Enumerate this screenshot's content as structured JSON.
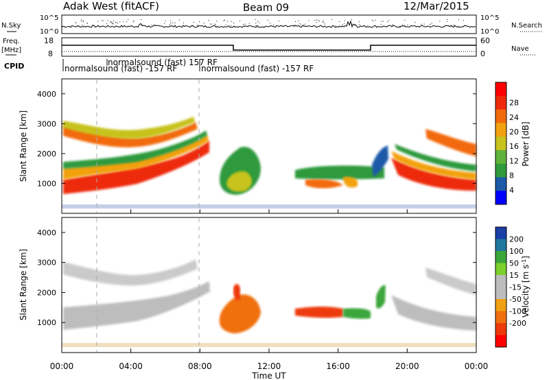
{
  "header": {
    "station": "Adak West (fitACF)",
    "beam": "Beam 09",
    "date": "12/Mar/2015"
  },
  "noise_panel": {
    "left_label": "N.Sky",
    "right_label": "N.Search",
    "ticks": [
      "10^5",
      "10^0"
    ],
    "right_ticks": [
      "10^5",
      "10^0"
    ]
  },
  "freq_panel": {
    "left_label_1": "Freq.",
    "left_label_2": "[MHz]",
    "left_ticks": [
      "18",
      "8"
    ],
    "right_label": "Nave",
    "right_ticks": [
      "60",
      "0"
    ]
  },
  "cpid": {
    "label": "CPID",
    "entries": [
      "normalsound (fast) 157 RF",
      "normalsound (fast) -157 RF",
      "normalsound (fast) -157 RF"
    ]
  },
  "colors": {
    "power_scale": [
      "#0000ff",
      "#1c5aa8",
      "#2e9a3c",
      "#5fb23a",
      "#c7c21d",
      "#f2a10f",
      "#f26a0c",
      "#ee2a0a",
      "#ff0000"
    ],
    "velocity_scale": [
      "#1b3fa6",
      "#20789e",
      "#3aa63a",
      "#7ccf2c",
      "#bdbdbd",
      "#bdbdbd",
      "#f0a010",
      "#f07010",
      "#ee3a0a",
      "#ff0000"
    ]
  },
  "chart_data": [
    {
      "type": "heatmap",
      "name": "power-panel",
      "x": [
        "00:00",
        "04:00",
        "08:00",
        "12:00",
        "16:00",
        "20:00",
        "00:00"
      ],
      "xlabel": "Time UT",
      "ylabel": "Slant Range [km]",
      "y_ticks": [
        1000,
        2000,
        3000,
        4000
      ],
      "ylim": [
        0,
        4500
      ],
      "colorbar_label": "Power [dB]",
      "colorbar_ticks": [
        4,
        8,
        12,
        16,
        20,
        24,
        28
      ]
    },
    {
      "type": "heatmap",
      "name": "velocity-panel",
      "x": [
        "00:00",
        "04:00",
        "08:00",
        "12:00",
        "16:00",
        "20:00",
        "00:00"
      ],
      "xlabel": "Time UT",
      "ylabel": "Slant Range [km]",
      "y_ticks": [
        1000,
        2000,
        3000,
        4000
      ],
      "ylim": [
        0,
        4500
      ],
      "colorbar_label": "Velocity [m s^-1]",
      "colorbar_ticks": [
        200,
        100,
        50,
        15,
        -15,
        -50,
        -100,
        -200
      ]
    }
  ]
}
